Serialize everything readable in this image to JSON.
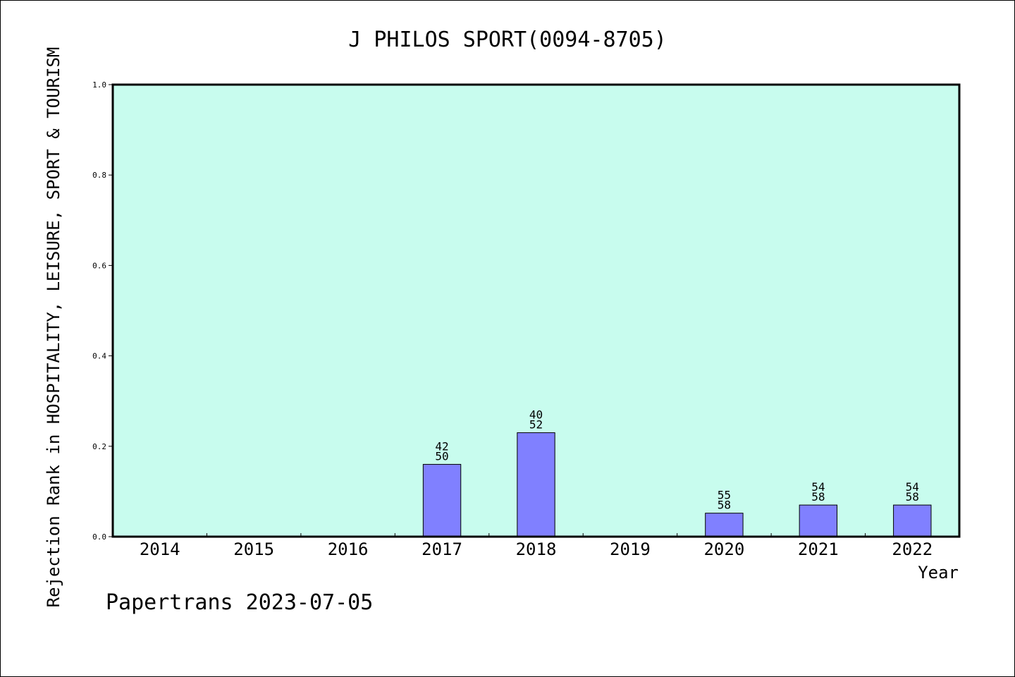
{
  "chart_data": {
    "type": "bar",
    "title": "J PHILOS SPORT(0094-8705)",
    "xlabel": "Year",
    "ylabel": "Rejection Rank in HOSPITALITY, LEISURE, SPORT & TOURISM",
    "ylim": [
      0,
      1.0
    ],
    "yticks": [
      "0.0",
      "0.2",
      "0.4",
      "0.6",
      "0.8",
      "1.0"
    ],
    "categories": [
      "2014",
      "2015",
      "2016",
      "2017",
      "2018",
      "2019",
      "2020",
      "2021",
      "2022"
    ],
    "values": [
      null,
      null,
      null,
      0.16,
      0.23,
      null,
      0.052,
      0.07,
      0.07
    ],
    "bar_labels": [
      null,
      null,
      null,
      [
        "42",
        "50"
      ],
      [
        "40",
        "52"
      ],
      null,
      [
        "55",
        "58"
      ],
      [
        "54",
        "58"
      ],
      [
        "54",
        "58"
      ]
    ],
    "grid": false,
    "colors": {
      "plot_background": "#c8fcee",
      "bar_fill": "#8080ff",
      "bar_edge": "#000000"
    }
  },
  "footer": {
    "text": "Papertrans 2023-07-05"
  }
}
